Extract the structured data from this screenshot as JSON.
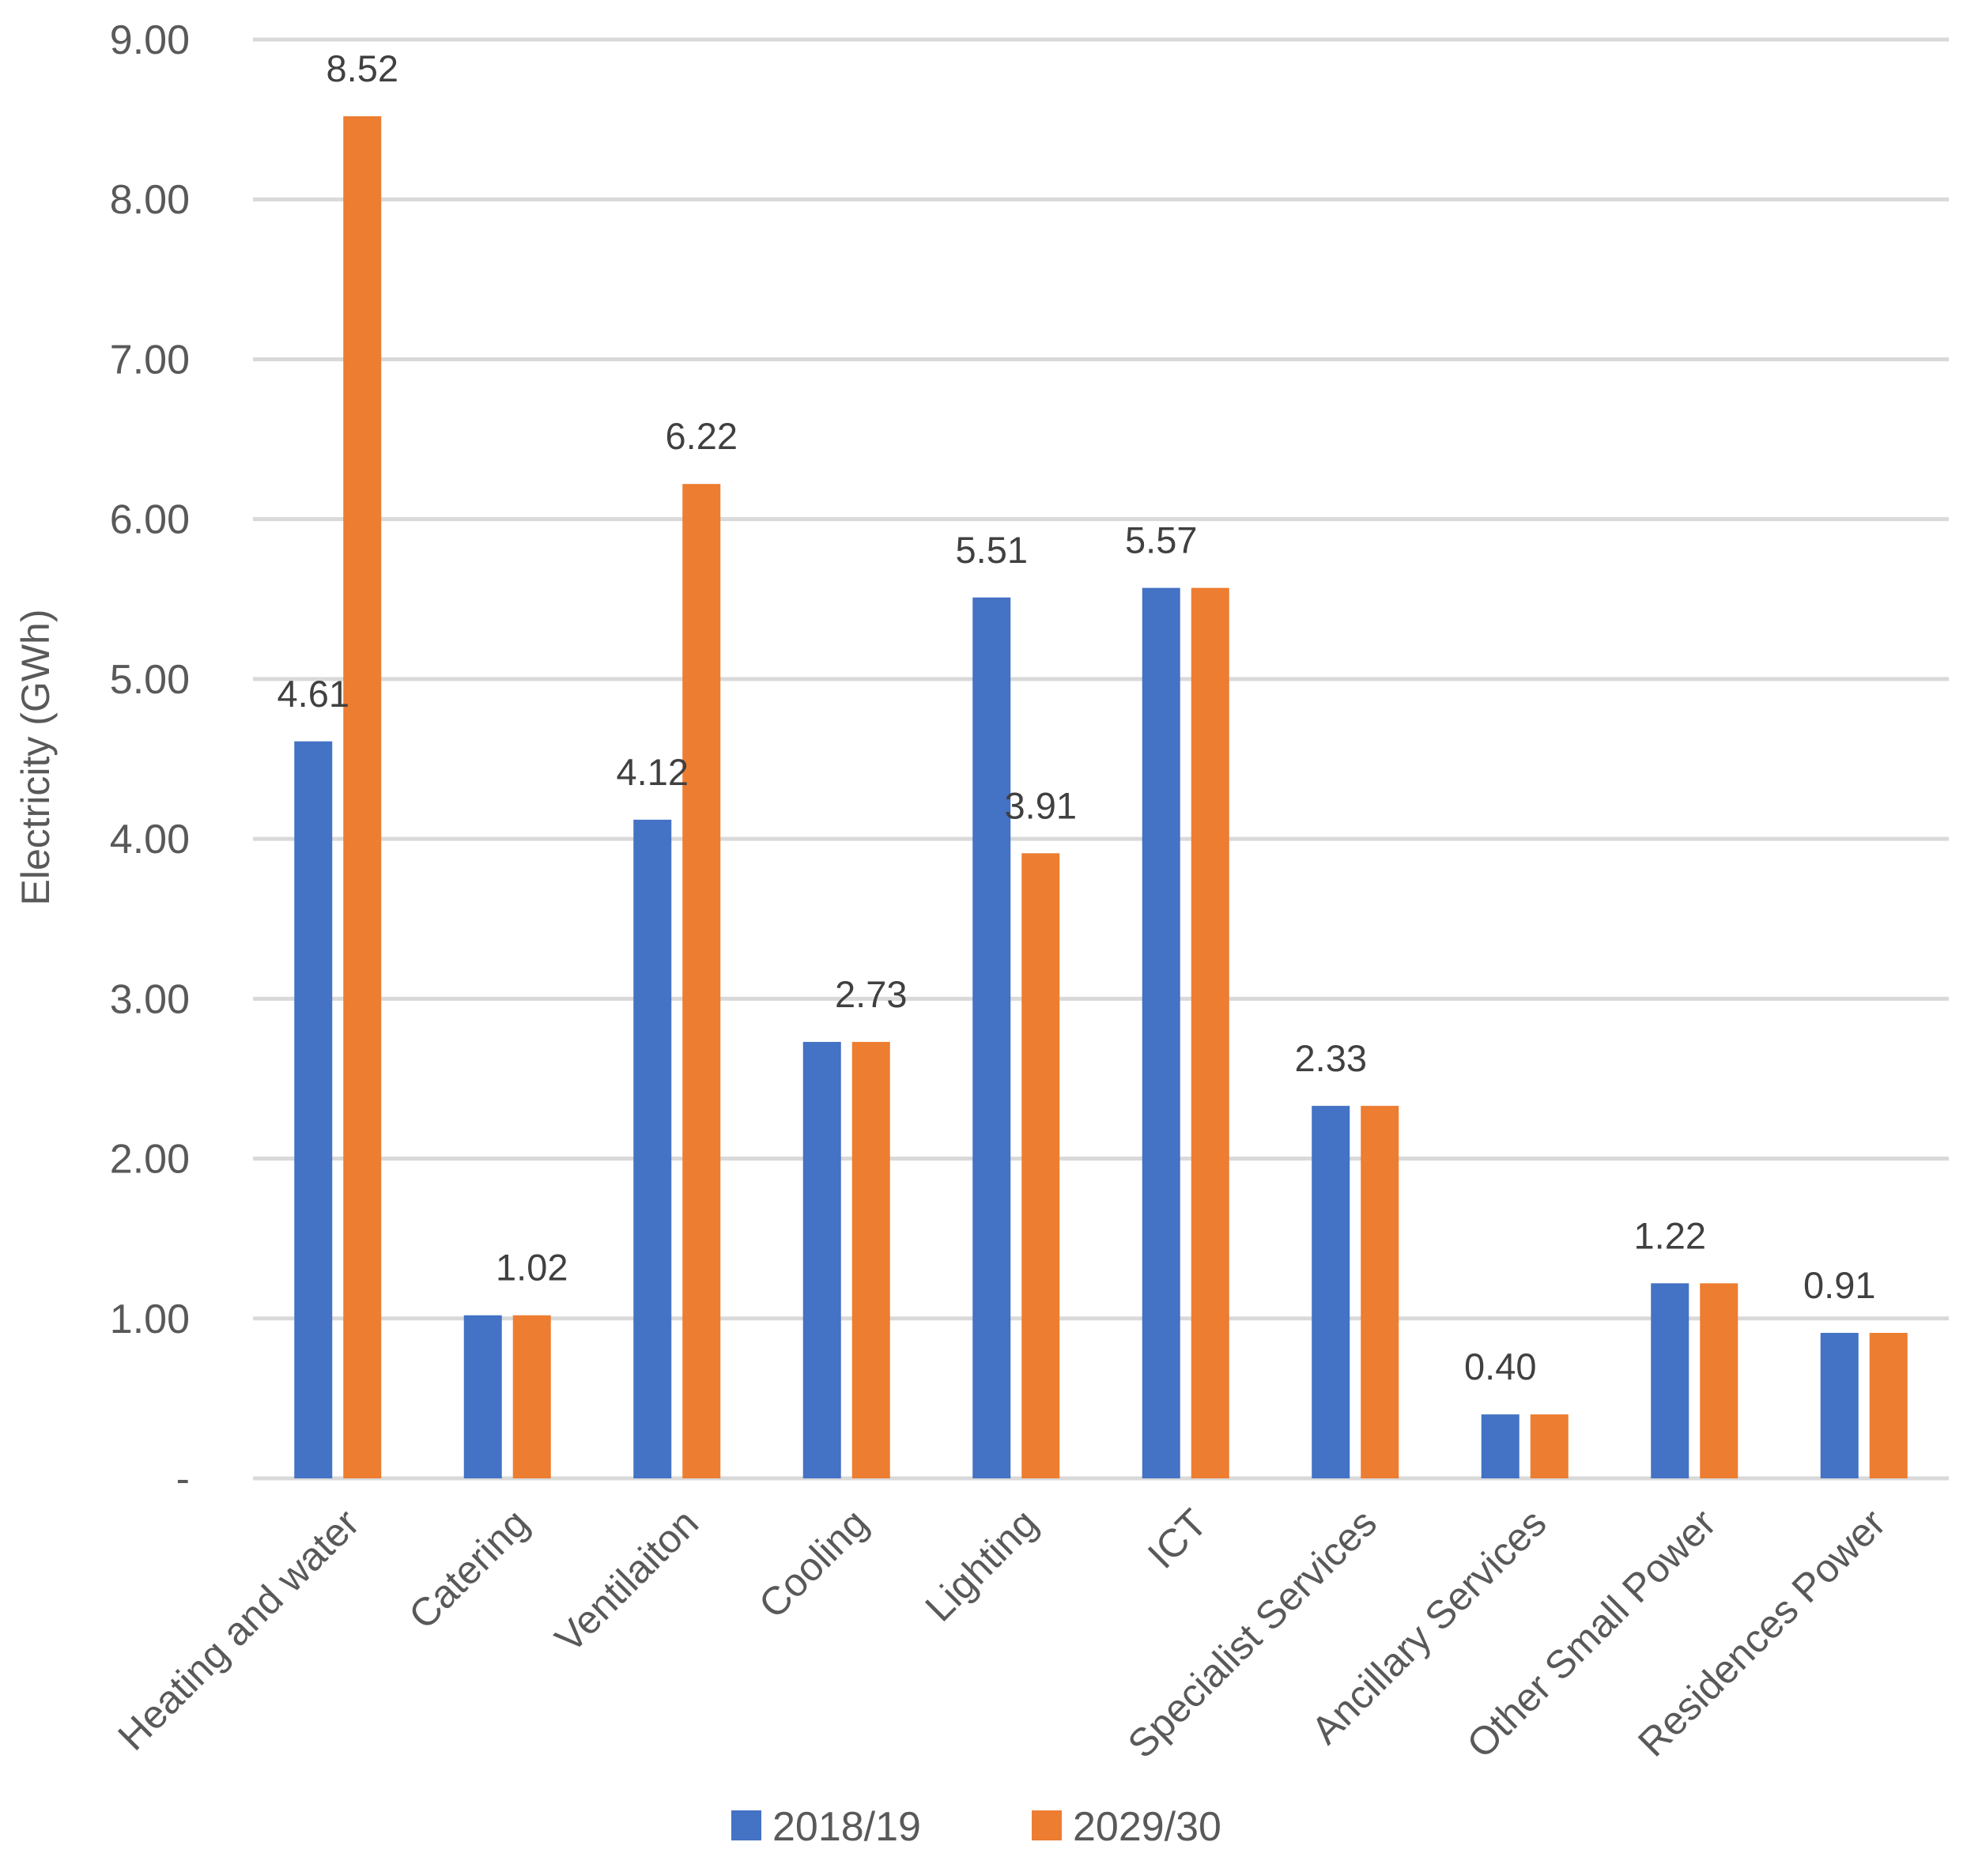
{
  "chart_data": {
    "type": "bar",
    "title": "",
    "xlabel": "",
    "ylabel": "Electricity (GWh)",
    "ylim": [
      0,
      9
    ],
    "yticks": [
      {
        "value": 0,
        "label": "-"
      },
      {
        "value": 1,
        "label": "1.00"
      },
      {
        "value": 2,
        "label": "2.00"
      },
      {
        "value": 3,
        "label": "3.00"
      },
      {
        "value": 4,
        "label": "4.00"
      },
      {
        "value": 5,
        "label": "5.00"
      },
      {
        "value": 6,
        "label": "6.00"
      },
      {
        "value": 7,
        "label": "7.00"
      },
      {
        "value": 8,
        "label": "8.00"
      },
      {
        "value": 9,
        "label": "9.00"
      }
    ],
    "grid": true,
    "legend_position": "bottom",
    "categories": [
      "Heating and water",
      "Catering",
      "Ventilaiton",
      "Cooling",
      "Lighting",
      "ICT",
      "Specialist Services",
      "Ancillary Services",
      "Other Small Power",
      "Residences Power"
    ],
    "series": [
      {
        "name": "2018/19",
        "color": "#4472c4",
        "values": [
          4.61,
          1.02,
          4.12,
          2.73,
          5.51,
          5.57,
          2.33,
          0.4,
          1.22,
          0.91
        ]
      },
      {
        "name": "2029/30",
        "color": "#ed7d31",
        "values": [
          8.52,
          1.02,
          6.22,
          2.73,
          3.91,
          5.57,
          2.33,
          0.4,
          1.22,
          0.91
        ]
      }
    ],
    "data_labels": [
      {
        "category_index": 0,
        "series_index": 0,
        "text": "4.61",
        "color": "#404040"
      },
      {
        "category_index": 0,
        "series_index": 1,
        "text": "8.52",
        "color": "#ff0000"
      },
      {
        "category_index": 1,
        "series_index": 1,
        "text": "1.02",
        "color": "#404040"
      },
      {
        "category_index": 2,
        "series_index": 0,
        "text": "4.12",
        "color": "#404040"
      },
      {
        "category_index": 2,
        "series_index": 1,
        "text": "6.22",
        "color": "#ff0000"
      },
      {
        "category_index": 3,
        "series_index": 1,
        "text": "2.73",
        "color": "#404040"
      },
      {
        "category_index": 4,
        "series_index": 0,
        "text": "5.51",
        "color": "#404040"
      },
      {
        "category_index": 4,
        "series_index": 1,
        "text": "3.91",
        "color": "#404040"
      },
      {
        "category_index": 5,
        "series_index": 0,
        "text": "5.57",
        "color": "#404040"
      },
      {
        "category_index": 6,
        "series_index": 0,
        "text": "2.33",
        "color": "#404040"
      },
      {
        "category_index": 7,
        "series_index": 0,
        "text": "0.40",
        "color": "#404040"
      },
      {
        "category_index": 8,
        "series_index": 0,
        "text": "1.22",
        "color": "#404040"
      },
      {
        "category_index": 9,
        "series_index": 0,
        "text": "0.91",
        "color": "#404040"
      }
    ]
  }
}
